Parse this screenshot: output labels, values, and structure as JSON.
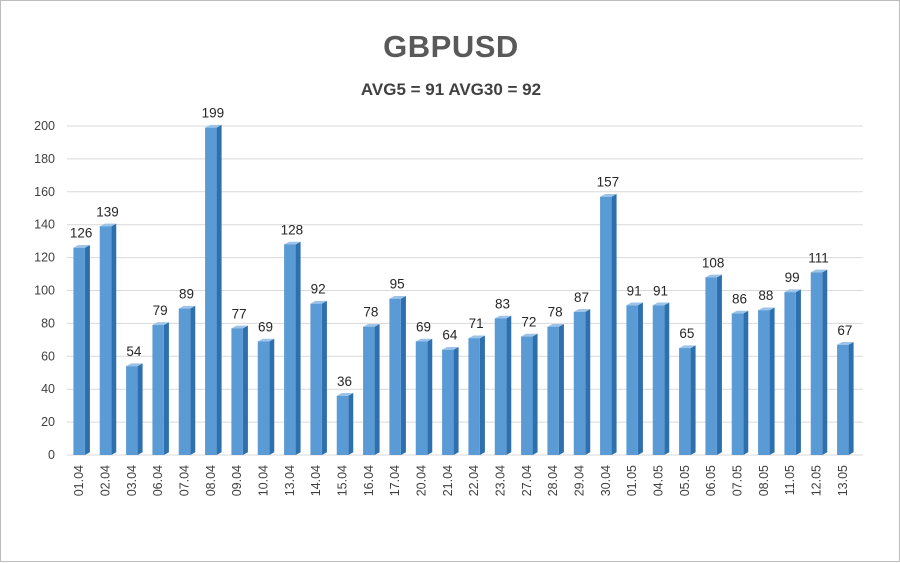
{
  "chart_data": {
    "type": "bar",
    "title": "GBPUSD",
    "subtitle": "AVG5 = 91 AVG30 = 92",
    "categories": [
      "01.04",
      "02.04",
      "03.04",
      "06.04",
      "07.04",
      "08.04",
      "09.04",
      "10.04",
      "13.04",
      "14.04",
      "15.04",
      "16.04",
      "17.04",
      "20.04",
      "21.04",
      "22.04",
      "23.04",
      "27.04",
      "28.04",
      "29.04",
      "30.04",
      "01.05",
      "04.05",
      "05.05",
      "06.05",
      "07.05",
      "08.05",
      "11.05",
      "12.05",
      "13.05"
    ],
    "values": [
      126,
      139,
      54,
      79,
      89,
      199,
      77,
      69,
      128,
      92,
      36,
      78,
      95,
      69,
      64,
      71,
      83,
      72,
      78,
      87,
      157,
      91,
      91,
      65,
      108,
      86,
      88,
      99,
      111,
      67
    ],
    "ylim": [
      0,
      200
    ],
    "yticks": [
      0,
      20,
      40,
      60,
      80,
      100,
      120,
      140,
      160,
      180,
      200
    ],
    "grid": true,
    "colors": {
      "bar_front": "#5b9bd5",
      "bar_side": "#2e6fad",
      "bar_top": "#9cc3e8",
      "grid": "#d9d9d9"
    }
  }
}
